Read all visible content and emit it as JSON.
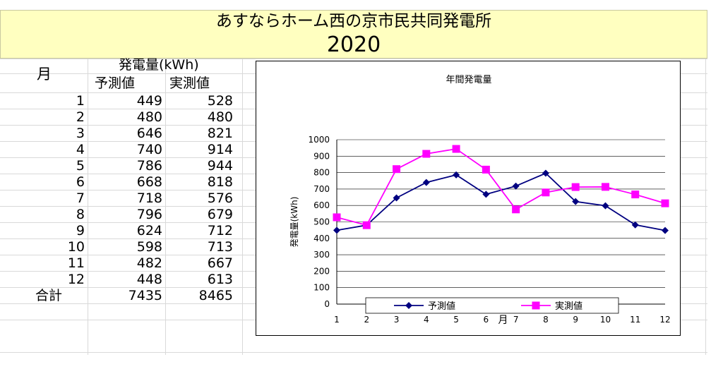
{
  "header": {
    "title": "あすならホーム西の京市民共同発電所",
    "year": "2020"
  },
  "table": {
    "month_header": "月",
    "generation_header": "発電量(kWh)",
    "forecast_header": "予測値",
    "actual_header": "実測値",
    "rows": [
      {
        "month": "1",
        "forecast": "449",
        "actual": "528"
      },
      {
        "month": "2",
        "forecast": "480",
        "actual": "480"
      },
      {
        "month": "3",
        "forecast": "646",
        "actual": "821"
      },
      {
        "month": "4",
        "forecast": "740",
        "actual": "914"
      },
      {
        "month": "5",
        "forecast": "786",
        "actual": "944"
      },
      {
        "month": "6",
        "forecast": "668",
        "actual": "818"
      },
      {
        "month": "7",
        "forecast": "718",
        "actual": "576"
      },
      {
        "month": "8",
        "forecast": "796",
        "actual": "679"
      },
      {
        "month": "9",
        "forecast": "624",
        "actual": "712"
      },
      {
        "month": "10",
        "forecast": "598",
        "actual": "713"
      },
      {
        "month": "11",
        "forecast": "482",
        "actual": "667"
      },
      {
        "month": "12",
        "forecast": "448",
        "actual": "613"
      }
    ],
    "total_label": "合計",
    "total_forecast": "7435",
    "total_actual": "8465"
  },
  "chart_data": {
    "type": "line",
    "title": "年間発電量",
    "xlabel": "月",
    "ylabel": "発電量(kWh)",
    "categories": [
      "1",
      "2",
      "3",
      "4",
      "5",
      "6",
      "7",
      "8",
      "9",
      "10",
      "11",
      "12"
    ],
    "ylim": [
      0,
      1000
    ],
    "yticks": [
      0,
      100,
      200,
      300,
      400,
      500,
      600,
      700,
      800,
      900,
      1000
    ],
    "grid": true,
    "legend_position": "bottom",
    "series": [
      {
        "name": "予測値",
        "values": [
          449,
          480,
          646,
          740,
          786,
          668,
          718,
          796,
          624,
          598,
          482,
          448
        ],
        "color": "#000080",
        "marker": "diamond"
      },
      {
        "name": "実測値",
        "values": [
          528,
          480,
          821,
          914,
          944,
          818,
          576,
          679,
          712,
          713,
          667,
          613
        ],
        "color": "#ff00ff",
        "marker": "square"
      }
    ]
  }
}
